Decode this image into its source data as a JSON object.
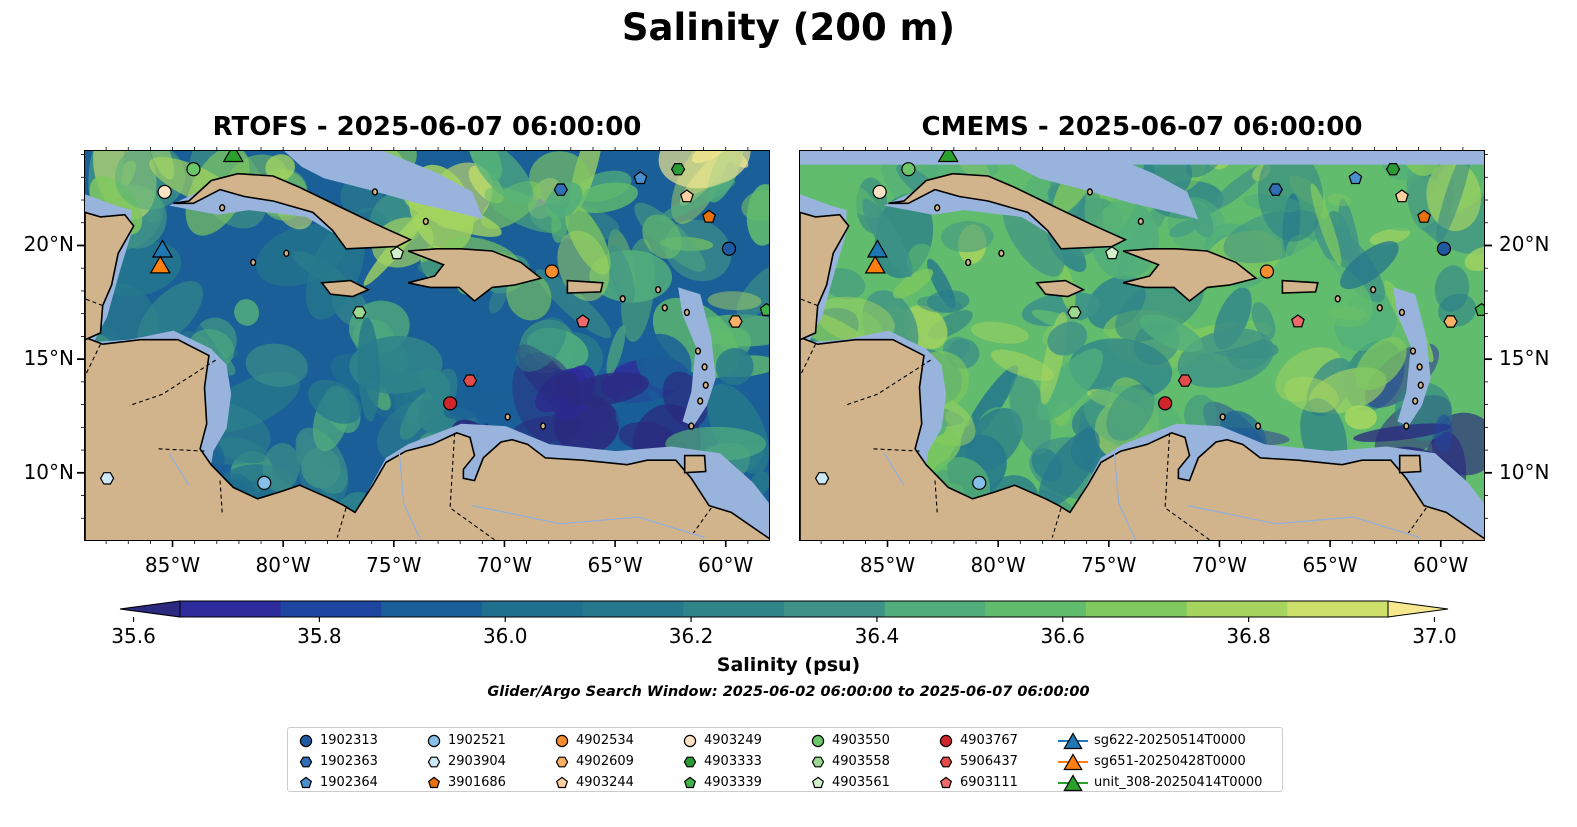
{
  "title": "Salinity (200 m)",
  "panels": [
    {
      "title": "RTOFS - 2025-06-07 06:00:00",
      "scheme": "rtofs"
    },
    {
      "title": "CMEMS - 2025-06-07 06:00:00",
      "scheme": "cmems"
    }
  ],
  "map_extent": {
    "lon_min": -89,
    "lon_max": -58,
    "lat_min": 7,
    "lat_max": 24.2
  },
  "axes": {
    "x_ticks": [
      "85°W",
      "80°W",
      "75°W",
      "70°W",
      "65°W",
      "60°W"
    ],
    "x_values": [
      -85,
      -80,
      -75,
      -70,
      -65,
      -60
    ],
    "y_ticks": [
      "10°N",
      "15°N",
      "20°N"
    ],
    "y_values": [
      10,
      15,
      20
    ]
  },
  "colorbar": {
    "label": "Salinity (psu)",
    "min": 35.55,
    "max": 37.05,
    "step": 0.1,
    "extend": "both",
    "ticks": [
      "35.6",
      "35.8",
      "36.0",
      "36.2",
      "36.4",
      "36.6",
      "36.8",
      "37.0"
    ],
    "tick_values": [
      35.6,
      35.8,
      36.0,
      36.2,
      36.4,
      36.6,
      36.8,
      37.0
    ],
    "colors": [
      "#2b2a7f",
      "#2d2a9c",
      "#1e46a0",
      "#1a5f97",
      "#1f6f8f",
      "#26798c",
      "#2f848a",
      "#3e9287",
      "#51ae7c",
      "#61bc6d",
      "#80c95e",
      "#a5d55f",
      "#cde06c",
      "#f5e88f"
    ]
  },
  "land_color": "#d2b48c",
  "shelf_color": "#98b4dc",
  "search_window": "Glider/Argo Search Window: 2025-06-02 06:00:00 to 2025-06-07 06:00:00",
  "legend": [
    {
      "label": "1902313",
      "marker": "circle",
      "color": "#1f5aa0"
    },
    {
      "label": "1902363",
      "marker": "hexagon",
      "color": "#2f6eb5"
    },
    {
      "label": "1902364",
      "marker": "pentagon",
      "color": "#4a90d0"
    },
    {
      "label": "1902521",
      "marker": "circle",
      "color": "#86c0e8"
    },
    {
      "label": "2903904",
      "marker": "hexagon",
      "color": "#cde8f6"
    },
    {
      "label": "3901686",
      "marker": "pentagon",
      "color": "#e8700d"
    },
    {
      "label": "4902534",
      "marker": "circle",
      "color": "#f58c30"
    },
    {
      "label": "4902609",
      "marker": "hexagon",
      "color": "#fbb066"
    },
    {
      "label": "4903244",
      "marker": "pentagon",
      "color": "#fdd0a0"
    },
    {
      "label": "4903249",
      "marker": "circle",
      "color": "#fde3c4"
    },
    {
      "label": "4903333",
      "marker": "hexagon",
      "color": "#2a9a35"
    },
    {
      "label": "4903339",
      "marker": "pentagon",
      "color": "#3fb34a"
    },
    {
      "label": "4903550",
      "marker": "circle",
      "color": "#6cc66a"
    },
    {
      "label": "4903558",
      "marker": "hexagon",
      "color": "#9bd993"
    },
    {
      "label": "4903561",
      "marker": "pentagon",
      "color": "#d3f0cb"
    },
    {
      "label": "4903767",
      "marker": "circle",
      "color": "#d0252b"
    },
    {
      "label": "5906437",
      "marker": "hexagon",
      "color": "#e34a4a"
    },
    {
      "label": "6903111",
      "marker": "pentagon",
      "color": "#ee6a6a"
    },
    {
      "label": "sg622-20250514T0000",
      "marker": "triangle",
      "color": "#1f77b4"
    },
    {
      "label": "sg651-20250428T0000",
      "marker": "triangle",
      "color": "#ff7f0e"
    },
    {
      "label": "unit_308-20250414T0000",
      "marker": "triangle",
      "color": "#2ca02c"
    }
  ],
  "floats": [
    {
      "id": "1902313",
      "lon": -59.9,
      "lat": 19.9
    },
    {
      "id": "1902363",
      "lon": -67.5,
      "lat": 22.5
    },
    {
      "id": "1902364",
      "lon": -63.9,
      "lat": 23.0
    },
    {
      "id": "1902521",
      "lon": -80.9,
      "lat": 9.6
    },
    {
      "id": "2903904",
      "lon": -88.0,
      "lat": 9.8
    },
    {
      "id": "3901686",
      "lon": -60.8,
      "lat": 21.3
    },
    {
      "id": "4902534",
      "lon": -67.9,
      "lat": 18.9
    },
    {
      "id": "4902609",
      "lon": -59.6,
      "lat": 16.7
    },
    {
      "id": "4903244",
      "lon": -61.8,
      "lat": 22.2
    },
    {
      "id": "4903249",
      "lon": -85.4,
      "lat": 22.4
    },
    {
      "id": "4903333",
      "lon": -62.2,
      "lat": 23.4
    },
    {
      "id": "4903339",
      "lon": -58.2,
      "lat": 17.2
    },
    {
      "id": "4903550",
      "lon": -84.1,
      "lat": 23.4
    },
    {
      "id": "4903558",
      "lon": -76.6,
      "lat": 17.1
    },
    {
      "id": "4903561",
      "lon": -74.9,
      "lat": 19.7
    },
    {
      "id": "4903767",
      "lon": -72.5,
      "lat": 13.1
    },
    {
      "id": "5906437",
      "lon": -71.6,
      "lat": 14.1
    },
    {
      "id": "6903111",
      "lon": -66.5,
      "lat": 16.7
    }
  ],
  "gliders": [
    {
      "id": "sg622-20250514T0000",
      "lon": -85.5,
      "lat": 19.9
    },
    {
      "id": "sg651-20250428T0000",
      "lon": -85.6,
      "lat": 19.2
    },
    {
      "id": "unit_308-20250414T0000",
      "lon": -82.3,
      "lat": 24.1
    }
  ]
}
